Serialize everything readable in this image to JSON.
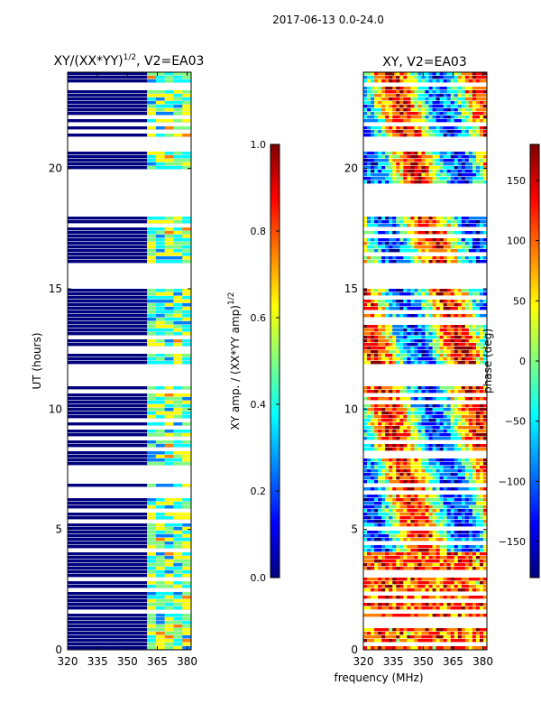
{
  "suptitle": "2017-06-13 0.0-24.0",
  "shared_xlabel": "frequency (MHz)",
  "chart_data": [
    {
      "type": "heatmap",
      "title_base": "XY/(XX*YY)",
      "title_sup": "1/2",
      "title_tail": ", V2=EA03",
      "xlabel": "frequency (MHz)",
      "ylabel": "UT (hours)",
      "xlim": [
        320,
        382
      ],
      "ylim": [
        0,
        24
      ],
      "xticks": [
        320,
        335,
        350,
        365,
        380
      ],
      "yticks": [
        0,
        5,
        10,
        15,
        20
      ],
      "colorbar": {
        "label_base": "XY amp. / (XX*YY amp)",
        "label_sup": "1/2",
        "range": [
          0.0,
          1.0
        ],
        "ticks": [
          "0.0",
          "0.2",
          "0.4",
          "0.6",
          "0.8",
          "1.0"
        ],
        "tick_values": [
          0.0,
          0.2,
          0.4,
          0.6,
          0.8,
          1.0
        ]
      },
      "gaps_hours": [
        [
          11.0,
          11.8
        ],
        [
          15.0,
          16.0
        ],
        [
          18.0,
          20.0
        ],
        [
          20.7,
          21.3
        ]
      ]
    },
    {
      "type": "heatmap",
      "title": "XY, V2=EA03",
      "xlabel": "frequency (MHz)",
      "ylabel": "",
      "xlim": [
        320,
        382
      ],
      "ylim": [
        0,
        24
      ],
      "xticks": [
        320,
        335,
        350,
        365,
        380
      ],
      "yticks": [
        0,
        5,
        10,
        15,
        20
      ],
      "colorbar": {
        "label": "phase (deg)",
        "range": [
          -180,
          180
        ],
        "ticks": [
          "150",
          "100",
          "50",
          "0",
          "−50",
          "−100",
          "−150"
        ],
        "tick_values": [
          150,
          100,
          50,
          0,
          -50,
          -100,
          -150
        ]
      },
      "gaps_hours": [
        [
          11.0,
          11.8
        ],
        [
          15.0,
          16.0
        ],
        [
          18.0,
          19.0
        ],
        [
          20.7,
          21.3
        ]
      ]
    }
  ],
  "colors": {
    "jet": [
      "#00007f",
      "#0000ff",
      "#007fff",
      "#00ffff",
      "#7fff7f",
      "#ffff00",
      "#ff7f00",
      "#ff0000",
      "#7f0000"
    ],
    "background": "#00007f"
  }
}
